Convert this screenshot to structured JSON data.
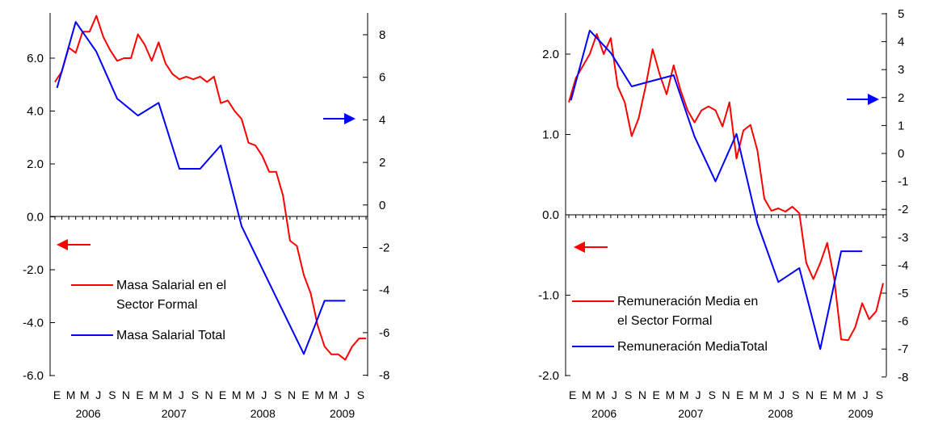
{
  "chart_data": [
    {
      "type": "line",
      "title": "",
      "x_months": [
        "E",
        "M",
        "M",
        "J",
        "S",
        "N",
        "E",
        "M",
        "M",
        "J",
        "S",
        "N",
        "E",
        "M",
        "M",
        "J",
        "S",
        "N",
        "E",
        "M",
        "M",
        "J",
        "S"
      ],
      "x_years": [
        "2006",
        "2007",
        "2008",
        "2009"
      ],
      "left_axis": {
        "ylim": [
          -6,
          7.6
        ],
        "ticks": [
          "6.0",
          "4.0",
          "2.0",
          "0.0",
          "-2.0",
          "-4.0",
          "-6.0"
        ]
      },
      "right_axis": {
        "ylim": [
          -8,
          9.8
        ],
        "ticks": [
          "8",
          "6",
          "4",
          "2",
          "0",
          "-2",
          "-4",
          "-6",
          "-8"
        ]
      },
      "series": [
        {
          "name": "Masa Salarial en el Sector Formal",
          "legend_lines": [
            "Masa Salarial en el",
            "Sector Formal"
          ],
          "color": "#ff0000",
          "axis": "left",
          "t": [
            0,
            1,
            2,
            3,
            4,
            5,
            6,
            7,
            8,
            9,
            10,
            11,
            12,
            13,
            14,
            15,
            16,
            17,
            18,
            19,
            20,
            21,
            22,
            23,
            24,
            25,
            26,
            27,
            28,
            29,
            30,
            31,
            32,
            33,
            34,
            35,
            36,
            37,
            38,
            39,
            40,
            41,
            42,
            43,
            44,
            45
          ],
          "values": [
            5.1,
            5.5,
            6.4,
            6.2,
            7.0,
            7.0,
            7.6,
            6.8,
            6.3,
            5.9,
            6.0,
            6.0,
            6.9,
            6.5,
            5.9,
            6.6,
            5.8,
            5.4,
            5.2,
            5.3,
            5.2,
            5.3,
            5.1,
            5.3,
            4.3,
            4.4,
            4.0,
            3.7,
            2.8,
            2.7,
            2.3,
            1.7,
            1.7,
            0.8,
            -0.9,
            -1.1,
            -2.2,
            -2.9,
            -4.1,
            -4.9,
            -5.2,
            -5.2,
            -5.4,
            -4.9,
            -4.6,
            -4.6
          ]
        },
        {
          "name": "Masa Salarial Total",
          "legend_lines": [
            "Masa Salarial Total"
          ],
          "color": "#0000ff",
          "axis": "right",
          "t": [
            0.3,
            3,
            6,
            9,
            12,
            15,
            18,
            21,
            24,
            27,
            30,
            33,
            36,
            39,
            42
          ],
          "values": [
            5.5,
            8.6,
            7.2,
            5.0,
            4.2,
            4.8,
            1.7,
            1.7,
            2.8,
            -1.0,
            -3.0,
            -5.0,
            -7.0,
            -4.5,
            -4.5
          ]
        }
      ]
    },
    {
      "type": "line",
      "title": "",
      "x_months": [
        "E",
        "M",
        "M",
        "J",
        "S",
        "N",
        "E",
        "M",
        "M",
        "J",
        "S",
        "N",
        "E",
        "M",
        "M",
        "J",
        "S",
        "N",
        "E",
        "M",
        "M",
        "J",
        "S"
      ],
      "x_years": [
        "2006",
        "2007",
        "2008",
        "2009"
      ],
      "left_axis": {
        "ylim": [
          -2,
          2.5
        ],
        "ticks": [
          "2.0",
          "1.0",
          "0.0",
          "-1.0",
          "-2.0"
        ]
      },
      "right_axis": {
        "ylim": [
          -8,
          5
        ],
        "ticks": [
          "5",
          "4",
          "3",
          "2",
          "1",
          "0",
          "-1",
          "-2",
          "-3",
          "-4",
          "-5",
          "-6",
          "-7",
          "-8"
        ]
      },
      "series": [
        {
          "name": "Remuneración Media en el Sector Formal",
          "legend_lines": [
            "Remuneración Media en",
            "el Sector Formal"
          ],
          "color": "#ff0000",
          "axis": "left",
          "t": [
            0,
            1,
            2,
            3,
            4,
            5,
            6,
            7,
            8,
            9,
            10,
            11,
            12,
            13,
            14,
            15,
            16,
            17,
            18,
            19,
            20,
            21,
            22,
            23,
            24,
            25,
            26,
            27,
            28,
            29,
            30,
            31,
            32,
            33,
            34,
            35,
            36,
            37,
            38,
            39,
            40,
            41,
            42,
            43,
            44,
            45
          ],
          "values": [
            1.4,
            1.7,
            1.85,
            2.0,
            2.25,
            2.0,
            2.2,
            1.6,
            1.4,
            0.98,
            1.2,
            1.6,
            2.06,
            1.75,
            1.5,
            1.86,
            1.55,
            1.3,
            1.15,
            1.3,
            1.35,
            1.3,
            1.1,
            1.4,
            0.7,
            1.05,
            1.12,
            0.8,
            0.2,
            0.05,
            0.08,
            0.04,
            0.1,
            0.02,
            -0.6,
            -0.8,
            -0.6,
            -0.35,
            -0.8,
            -1.55,
            -1.56,
            -1.4,
            -1.1,
            -1.3,
            -1.2,
            -0.85
          ]
        },
        {
          "name": "Remuneración MediaTotal",
          "legend_lines": [
            "Remuneración MediaTotal"
          ],
          "color": "#0000ff",
          "axis": "right",
          "t": [
            0.3,
            3,
            6,
            9,
            12,
            15,
            18,
            21,
            24,
            27,
            30,
            33,
            36,
            39,
            42
          ],
          "values": [
            1.9,
            4.4,
            3.6,
            2.4,
            2.6,
            2.8,
            0.6,
            -1.0,
            0.7,
            -2.5,
            -4.6,
            -4.1,
            -7.0,
            -3.5,
            -3.5
          ]
        }
      ]
    }
  ]
}
